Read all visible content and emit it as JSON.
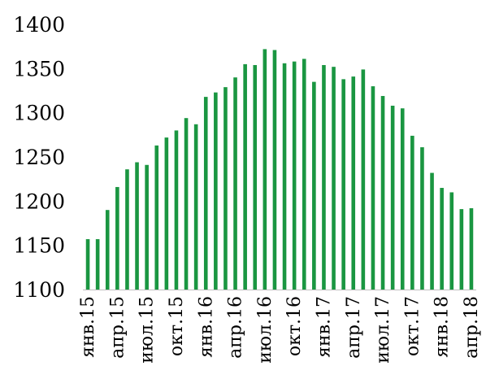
{
  "chart_data": {
    "type": "bar",
    "title": "",
    "xlabel": "",
    "ylabel": "",
    "ylim": [
      1100,
      1400
    ],
    "yticks": [
      1100,
      1150,
      1200,
      1250,
      1300,
      1350,
      1400
    ],
    "grid": false,
    "legend": "none",
    "bar_color": "#1a9641",
    "tick_labels": [
      "янв.15",
      "апр.15",
      "июл.15",
      "окт.15",
      "янв.16",
      "апр.16",
      "июл.16",
      "окт.16",
      "янв.17",
      "апр.17",
      "июл.17",
      "окт.17",
      "янв.18",
      "апр.18"
    ],
    "categories": [
      "янв.15",
      "фев.15",
      "мар.15",
      "апр.15",
      "май.15",
      "июн.15",
      "июл.15",
      "авг.15",
      "сен.15",
      "окт.15",
      "ноя.15",
      "дек.15",
      "янв.16",
      "фев.16",
      "мар.16",
      "апр.16",
      "май.16",
      "июн.16",
      "июл.16",
      "авг.16",
      "сен.16",
      "окт.16",
      "ноя.16",
      "дек.16",
      "янв.17",
      "фев.17",
      "мар.17",
      "апр.17",
      "май.17",
      "июн.17",
      "июл.17",
      "авг.17",
      "сен.17",
      "окт.17",
      "ноя.17",
      "дек.17",
      "янв.18",
      "фев.18",
      "мар.18",
      "апр.18"
    ],
    "values": [
      1157,
      1157,
      1190,
      1216,
      1236,
      1244,
      1241,
      1263,
      1272,
      1280,
      1294,
      1287,
      1318,
      1323,
      1329,
      1340,
      1355,
      1354,
      1372,
      1371,
      1356,
      1358,
      1361,
      1335,
      1354,
      1352,
      1338,
      1341,
      1349,
      1330,
      1319,
      1308,
      1305,
      1274,
      1261,
      1232,
      1215,
      1210,
      1191,
      1192
    ]
  }
}
